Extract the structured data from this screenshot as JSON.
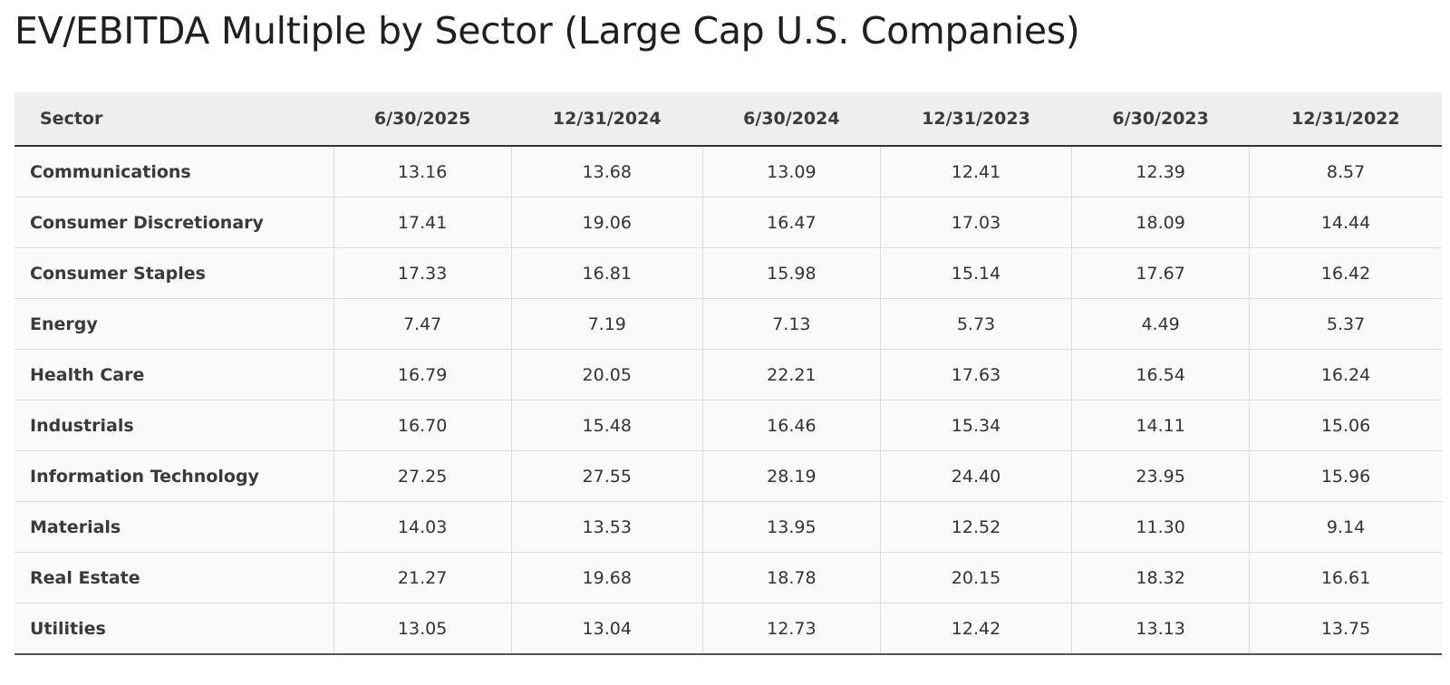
{
  "chart_data": {
    "type": "table",
    "title": "EV/EBITDA Multiple by Sector (Large Cap U.S. Companies)",
    "columns": [
      "Sector",
      "6/30/2025",
      "12/31/2024",
      "6/30/2024",
      "12/31/2023",
      "6/30/2023",
      "12/31/2022"
    ],
    "rows": [
      [
        "Communications",
        "13.16",
        "13.68",
        "13.09",
        "12.41",
        "12.39",
        "8.57"
      ],
      [
        "Consumer Discretionary",
        "17.41",
        "19.06",
        "16.47",
        "17.03",
        "18.09",
        "14.44"
      ],
      [
        "Consumer Staples",
        "17.33",
        "16.81",
        "15.98",
        "15.14",
        "17.67",
        "16.42"
      ],
      [
        "Energy",
        "7.47",
        "7.19",
        "7.13",
        "5.73",
        "4.49",
        "5.37"
      ],
      [
        "Health Care",
        "16.79",
        "20.05",
        "22.21",
        "17.63",
        "16.54",
        "16.24"
      ],
      [
        "Industrials",
        "16.70",
        "15.48",
        "16.46",
        "15.34",
        "14.11",
        "15.06"
      ],
      [
        "Information Technology",
        "27.25",
        "27.55",
        "28.19",
        "24.40",
        "23.95",
        "15.96"
      ],
      [
        "Materials",
        "14.03",
        "13.53",
        "13.95",
        "12.52",
        "11.30",
        "9.14"
      ],
      [
        "Real Estate",
        "21.27",
        "19.68",
        "18.78",
        "20.15",
        "18.32",
        "16.61"
      ],
      [
        "Utilities",
        "13.05",
        "13.04",
        "12.73",
        "12.42",
        "13.13",
        "13.75"
      ]
    ]
  },
  "colors": {
    "header_background": "#eeeeee",
    "row_background": "#fafafa",
    "grid_line": "#dddddd",
    "text": "#333333"
  }
}
